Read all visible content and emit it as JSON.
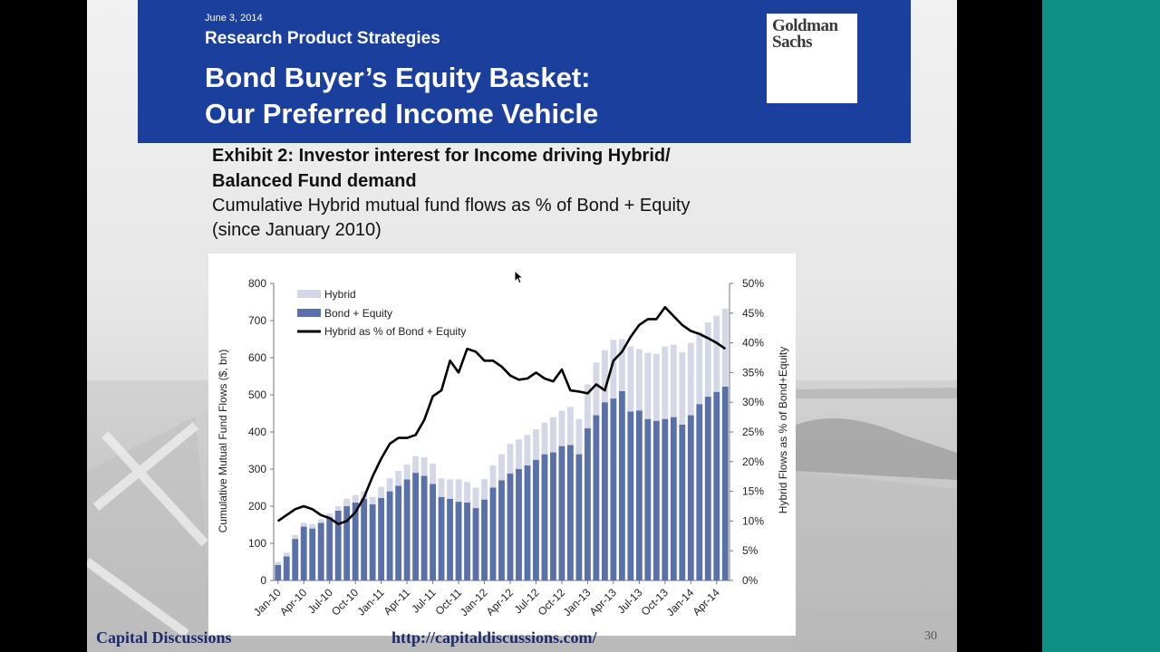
{
  "header": {
    "date": "June 3, 2014",
    "subtitle": "Research Product Strategies",
    "title_line1": "Bond Buyer’s Equity Basket:",
    "title_line2": "Our Preferred Income Vehicle",
    "logo_line1": "Goldman",
    "logo_line2": "Sachs"
  },
  "exhibit": {
    "title_line1": "Exhibit 2: Investor interest for Income driving Hybrid/",
    "title_line2": "Balanced Fund demand",
    "subtitle_line1": "Cumulative Hybrid mutual fund flows as % of Bond + Equity",
    "subtitle_line2": "(since January 2010)"
  },
  "footer": {
    "left": "Capital Discussions",
    "center": "http://capitaldiscussions.com/",
    "page": "30"
  },
  "chart_data": {
    "type": "bar",
    "stacked": true,
    "categories": [
      "Jan-10",
      "Feb-10",
      "Mar-10",
      "Apr-10",
      "May-10",
      "Jun-10",
      "Jul-10",
      "Aug-10",
      "Sep-10",
      "Oct-10",
      "Nov-10",
      "Dec-10",
      "Jan-11",
      "Feb-11",
      "Mar-11",
      "Apr-11",
      "May-11",
      "Jun-11",
      "Jul-11",
      "Aug-11",
      "Sep-11",
      "Oct-11",
      "Nov-11",
      "Dec-11",
      "Jan-12",
      "Feb-12",
      "Mar-12",
      "Apr-12",
      "May-12",
      "Jun-12",
      "Jul-12",
      "Aug-12",
      "Sep-12",
      "Oct-12",
      "Nov-12",
      "Dec-12",
      "Jan-13",
      "Feb-13",
      "Mar-13",
      "Apr-13",
      "May-13",
      "Jun-13",
      "Jul-13",
      "Aug-13",
      "Sep-13",
      "Oct-13",
      "Nov-13",
      "Dec-13",
      "Jan-14",
      "Feb-14",
      "Mar-14",
      "Apr-14",
      "May-14"
    ],
    "x_tick_labels": [
      "Jan-10",
      "Apr-10",
      "Jul-10",
      "Oct-10",
      "Jan-11",
      "Apr-11",
      "Jul-11",
      "Oct-11",
      "Jan-12",
      "Apr-12",
      "Jul-12",
      "Oct-12",
      "Jan-13",
      "Apr-13",
      "Jul-13",
      "Oct-13",
      "Jan-14",
      "Apr-14"
    ],
    "series": [
      {
        "name": "Bond + Equity",
        "type": "bar",
        "axis": "left",
        "color": "#5a70a9",
        "values": [
          42,
          65,
          112,
          145,
          140,
          155,
          170,
          188,
          200,
          210,
          220,
          205,
          222,
          240,
          255,
          272,
          290,
          282,
          260,
          225,
          220,
          212,
          210,
          195,
          218,
          250,
          270,
          288,
          300,
          310,
          325,
          340,
          345,
          362,
          365,
          340,
          410,
          445,
          480,
          490,
          510,
          455,
          458,
          435,
          430,
          435,
          440,
          420,
          445,
          475,
          495,
          508,
          522
        ]
      },
      {
        "name": "Hybrid",
        "type": "bar",
        "axis": "left",
        "color": "#d3d7e6",
        "values": [
          8,
          10,
          10,
          10,
          12,
          10,
          10,
          12,
          20,
          20,
          20,
          20,
          30,
          35,
          40,
          40,
          45,
          50,
          55,
          50,
          52,
          60,
          55,
          55,
          55,
          60,
          70,
          80,
          80,
          82,
          82,
          85,
          95,
          95,
          102,
          95,
          118,
          142,
          140,
          158,
          140,
          175,
          165,
          178,
          180,
          195,
          195,
          195,
          195,
          195,
          200,
          205,
          210
        ]
      },
      {
        "name": "Hybrid as % of Bond + Equity",
        "type": "line",
        "axis": "right",
        "color": "#000000",
        "values": [
          10.0,
          11.0,
          12.0,
          12.5,
          12.0,
          11.0,
          10.5,
          9.5,
          10.0,
          11.5,
          14.0,
          17.5,
          20.5,
          23.0,
          24.0,
          24.0,
          24.5,
          27.0,
          31.0,
          32.0,
          37.0,
          35.0,
          39.0,
          38.5,
          37.0,
          37.0,
          36.0,
          34.5,
          33.8,
          34.0,
          35.0,
          34.0,
          33.5,
          35.5,
          32.0,
          31.8,
          31.5,
          33.0,
          32.0,
          37.0,
          38.5,
          41.0,
          43.0,
          44.0,
          44.0,
          46.0,
          44.5,
          43.0,
          42.0,
          41.5,
          40.8,
          40.0,
          39.0
        ]
      }
    ],
    "ylabel": "Cumulative Mutual Fund Flows ($, bn)",
    "ylim": [
      0,
      800
    ],
    "y_ticks": [
      0,
      100,
      200,
      300,
      400,
      500,
      600,
      700,
      800
    ],
    "ylabel_right": "Hybrid Flows as % of Bond+Equity",
    "ylim_right": [
      0,
      50
    ],
    "y_ticks_right": [
      "0%",
      "5%",
      "10%",
      "15%",
      "20%",
      "25%",
      "30%",
      "35%",
      "40%",
      "45%",
      "50%"
    ],
    "legend": [
      "Hybrid",
      "Bond + Equity",
      "Hybrid as % of Bond + Equity"
    ],
    "legend_position": "top-left",
    "grid": false
  }
}
